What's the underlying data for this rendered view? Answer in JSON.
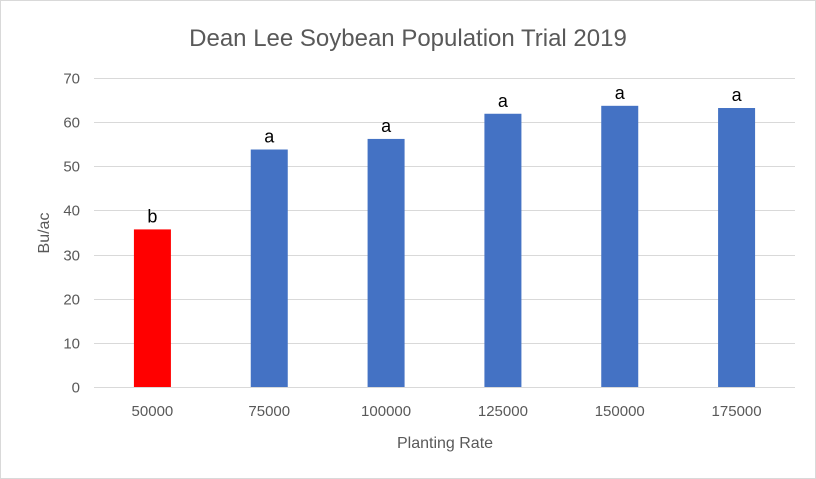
{
  "chart_data": {
    "type": "bar",
    "title": "Dean Lee Soybean Population Trial 2019",
    "xlabel": "Planting Rate",
    "ylabel": "Bu/ac",
    "categories": [
      "50000",
      "75000",
      "100000",
      "125000",
      "150000",
      "175000"
    ],
    "values": [
      35.7,
      53.8,
      56.2,
      61.9,
      63.7,
      63.2
    ],
    "data_labels": [
      "b",
      "a",
      "a",
      "a",
      "a",
      "a"
    ],
    "bar_colors": [
      "#FF0000",
      "#4472C4",
      "#4472C4",
      "#4472C4",
      "#4472C4",
      "#4472C4"
    ],
    "ylim": [
      0,
      70
    ],
    "yticks": [
      0,
      10,
      20,
      30,
      40,
      50,
      60,
      70
    ],
    "grid": true,
    "legend": "none"
  },
  "colors": {
    "gridline": "#d9d9d9",
    "axis_text": "#595959"
  }
}
